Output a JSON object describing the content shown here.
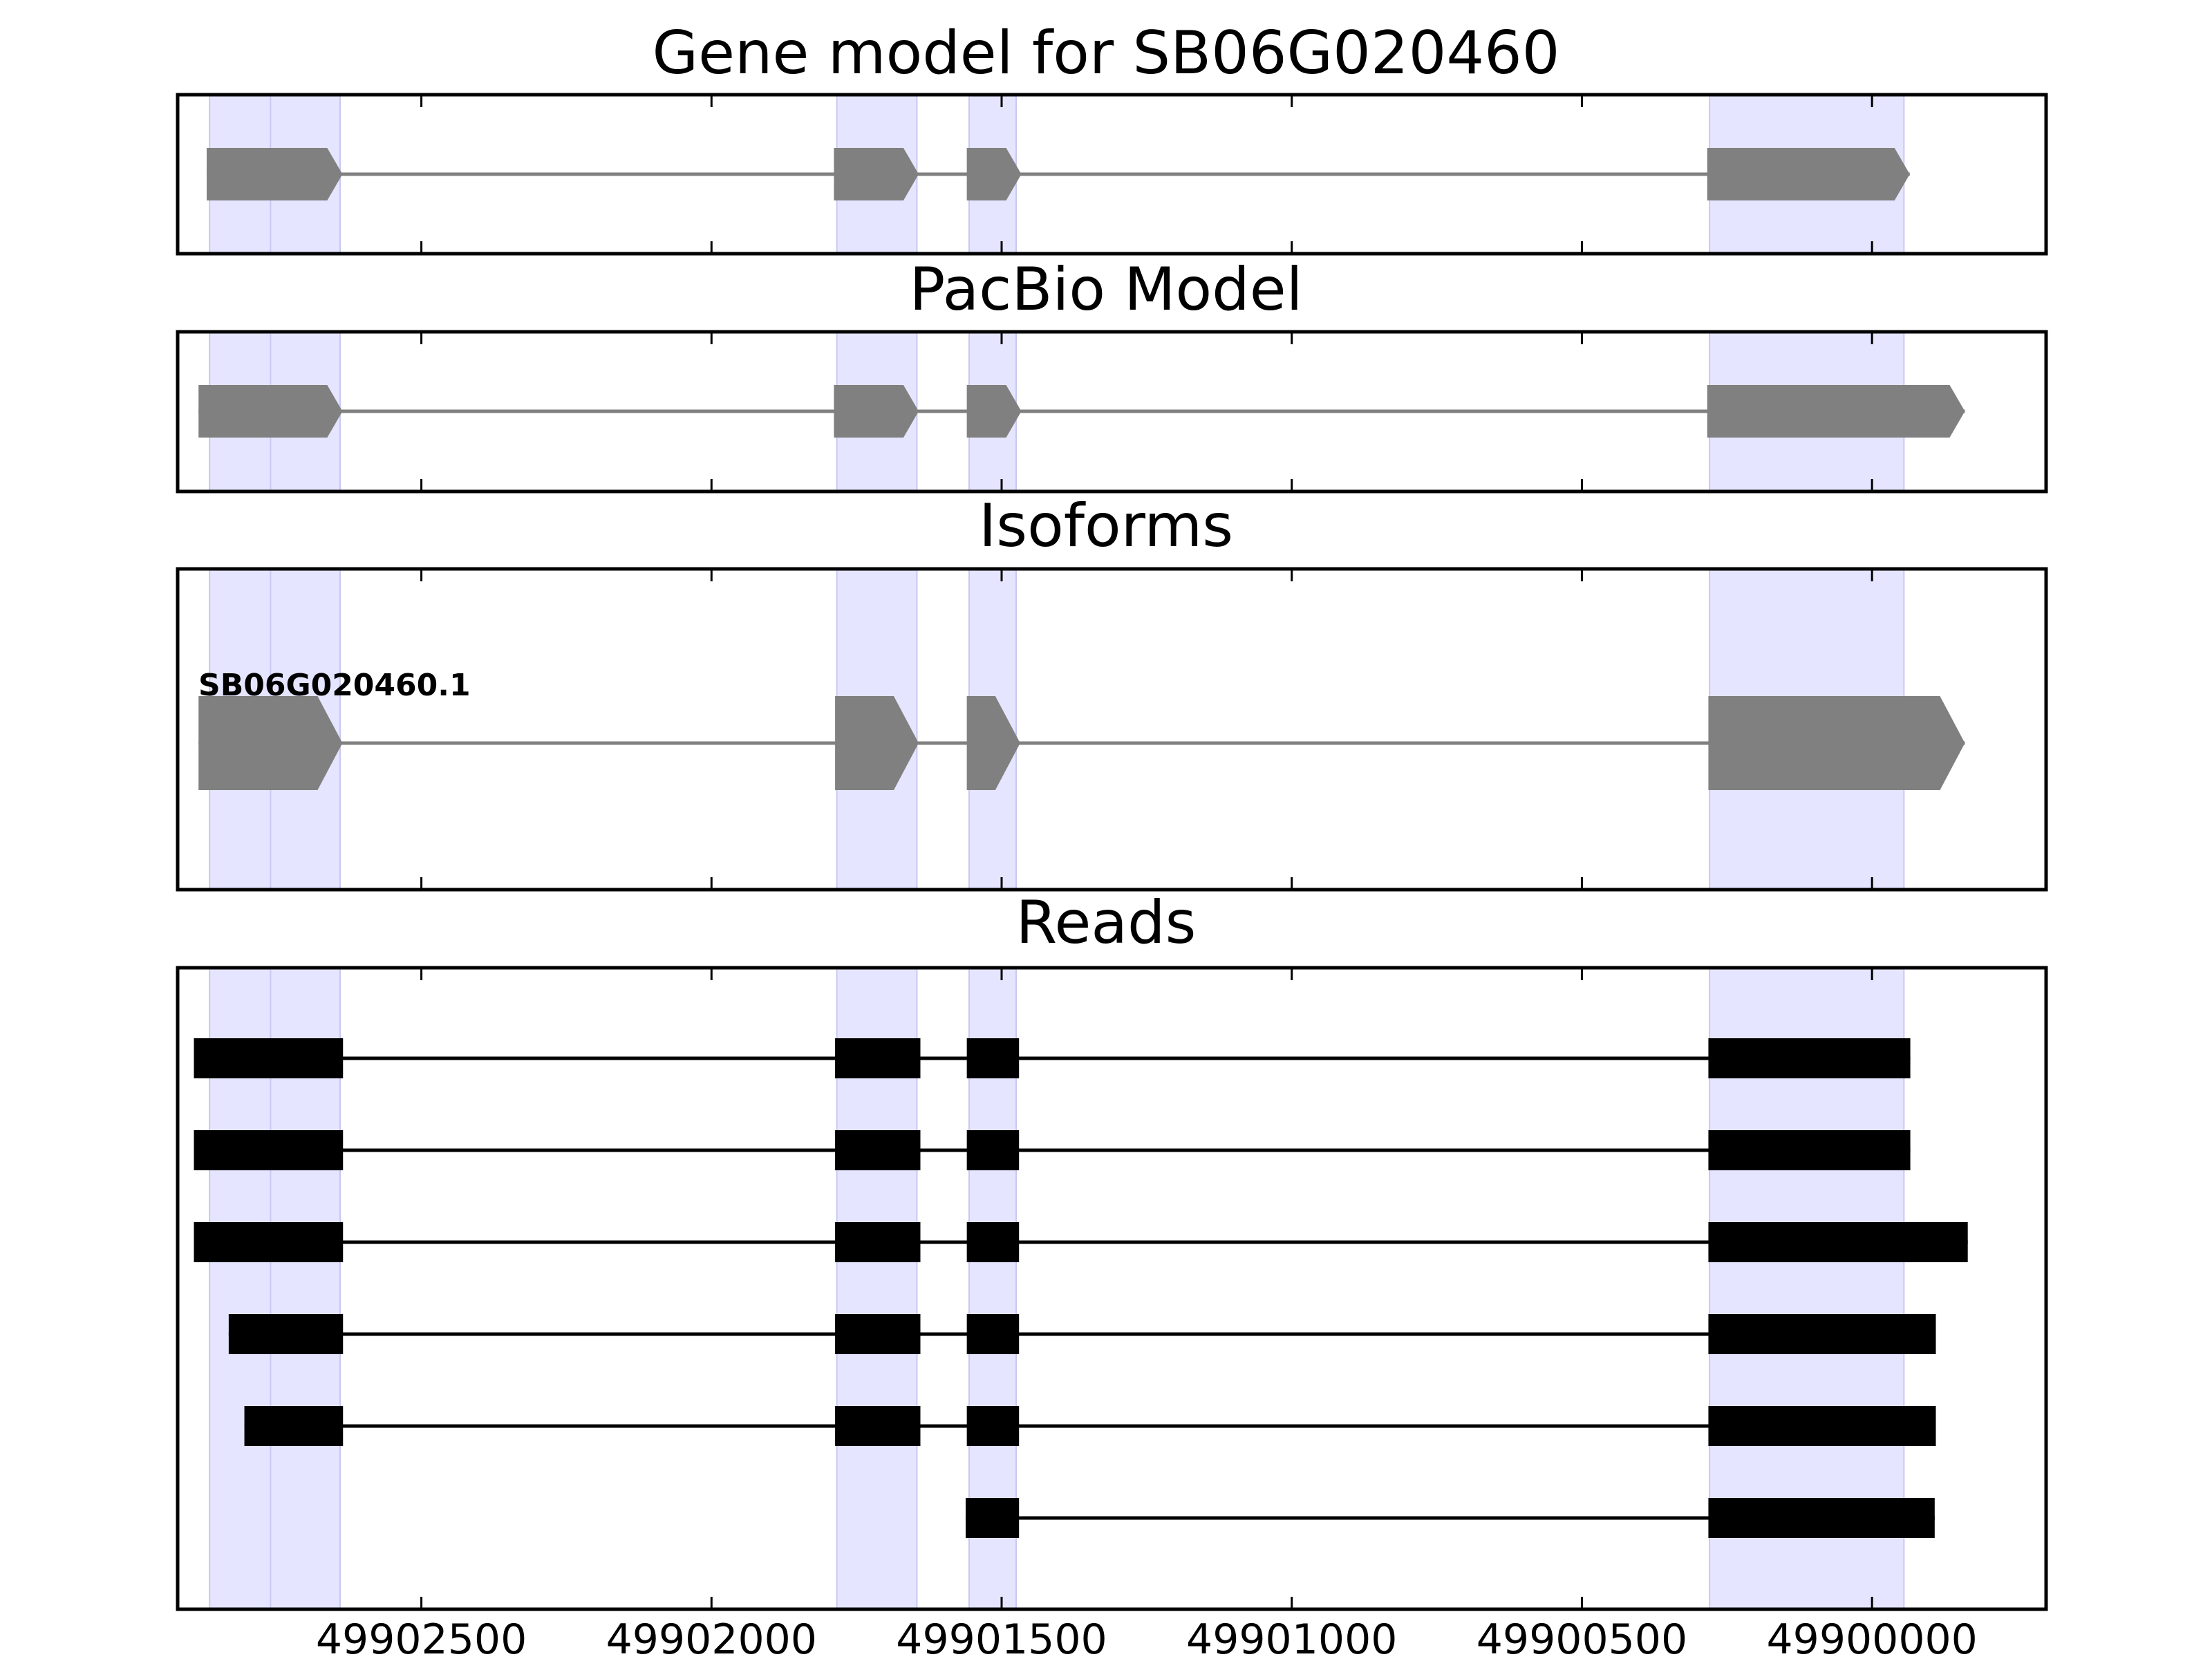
{
  "colors": {
    "highlight": "#e5e5ff",
    "highlight_edge": "#c8c8f0",
    "model": "#808080",
    "read": "#000000",
    "frame": "#000000"
  },
  "chart_data": {
    "type": "gene-model",
    "x_reversed": true,
    "xlim": [
      49902920,
      49899700
    ],
    "x_ticks": [
      49902500,
      49902000,
      49901500,
      49901000,
      49900500,
      49900000
    ],
    "x_tick_labels": [
      "49902500",
      "49902000",
      "49901500",
      "49901000",
      "49900500",
      "49900000"
    ],
    "highlight_regions": [
      [
        49902865,
        49902718
      ],
      [
        49902760,
        49902640
      ],
      [
        49901784,
        49901646
      ],
      [
        49901556,
        49901475
      ],
      [
        49900280,
        49899945
      ]
    ],
    "panels": [
      {
        "id": "gene-model",
        "title": "Gene model for SB06G020460",
        "strand": "-",
        "exons": [
          [
            49902870,
            49902716
          ],
          [
            49902764,
            49902636
          ],
          [
            49901789,
            49901643
          ],
          [
            49901560,
            49901466
          ],
          [
            49900284,
            49899935
          ]
        ]
      },
      {
        "id": "pacbio-model",
        "title": "PacBio Model",
        "strand": "-",
        "exons": [
          [
            49902884,
            49902716
          ],
          [
            49902764,
            49902636
          ],
          [
            49901789,
            49901643
          ],
          [
            49901560,
            49901466
          ],
          [
            49900284,
            49899840
          ]
        ]
      },
      {
        "id": "isoforms",
        "title": "Isoforms",
        "strand": "-",
        "isoforms": [
          {
            "name": "SB06G020460.1",
            "exons": [
              [
                49902884,
                49902716
              ],
              [
                49902762,
                49902636
              ],
              [
                49901787,
                49901643
              ],
              [
                49901560,
                49901468
              ],
              [
                49900282,
                49899840
              ]
            ]
          }
        ]
      },
      {
        "id": "reads",
        "title": "Reads",
        "reads": [
          [
            [
              49902892,
              49902713
            ],
            [
              49902762,
              49902635
            ],
            [
              49901787,
              49901640
            ],
            [
              49901560,
              49901470
            ],
            [
              49900282,
              49899934
            ]
          ],
          [
            [
              49902892,
              49902713
            ],
            [
              49902762,
              49902635
            ],
            [
              49901787,
              49901640
            ],
            [
              49901560,
              49901470
            ],
            [
              49900282,
              49899934
            ]
          ],
          [
            [
              49902892,
              49902713
            ],
            [
              49902762,
              49902635
            ],
            [
              49901787,
              49901640
            ],
            [
              49901560,
              49901470
            ],
            [
              49900282,
              49899835
            ]
          ],
          [
            [
              49902832,
              49902713
            ],
            [
              49902762,
              49902635
            ],
            [
              49901787,
              49901640
            ],
            [
              49901560,
              49901470
            ],
            [
              49900282,
              49899890
            ]
          ],
          [
            [
              49902805,
              49902713
            ],
            [
              49902762,
              49902635
            ],
            [
              49901787,
              49901640
            ],
            [
              49901560,
              49901470
            ],
            [
              49900282,
              49899890
            ]
          ],
          [
            [
              49901562,
              49901470
            ],
            [
              49900282,
              49899892
            ]
          ]
        ]
      }
    ]
  }
}
